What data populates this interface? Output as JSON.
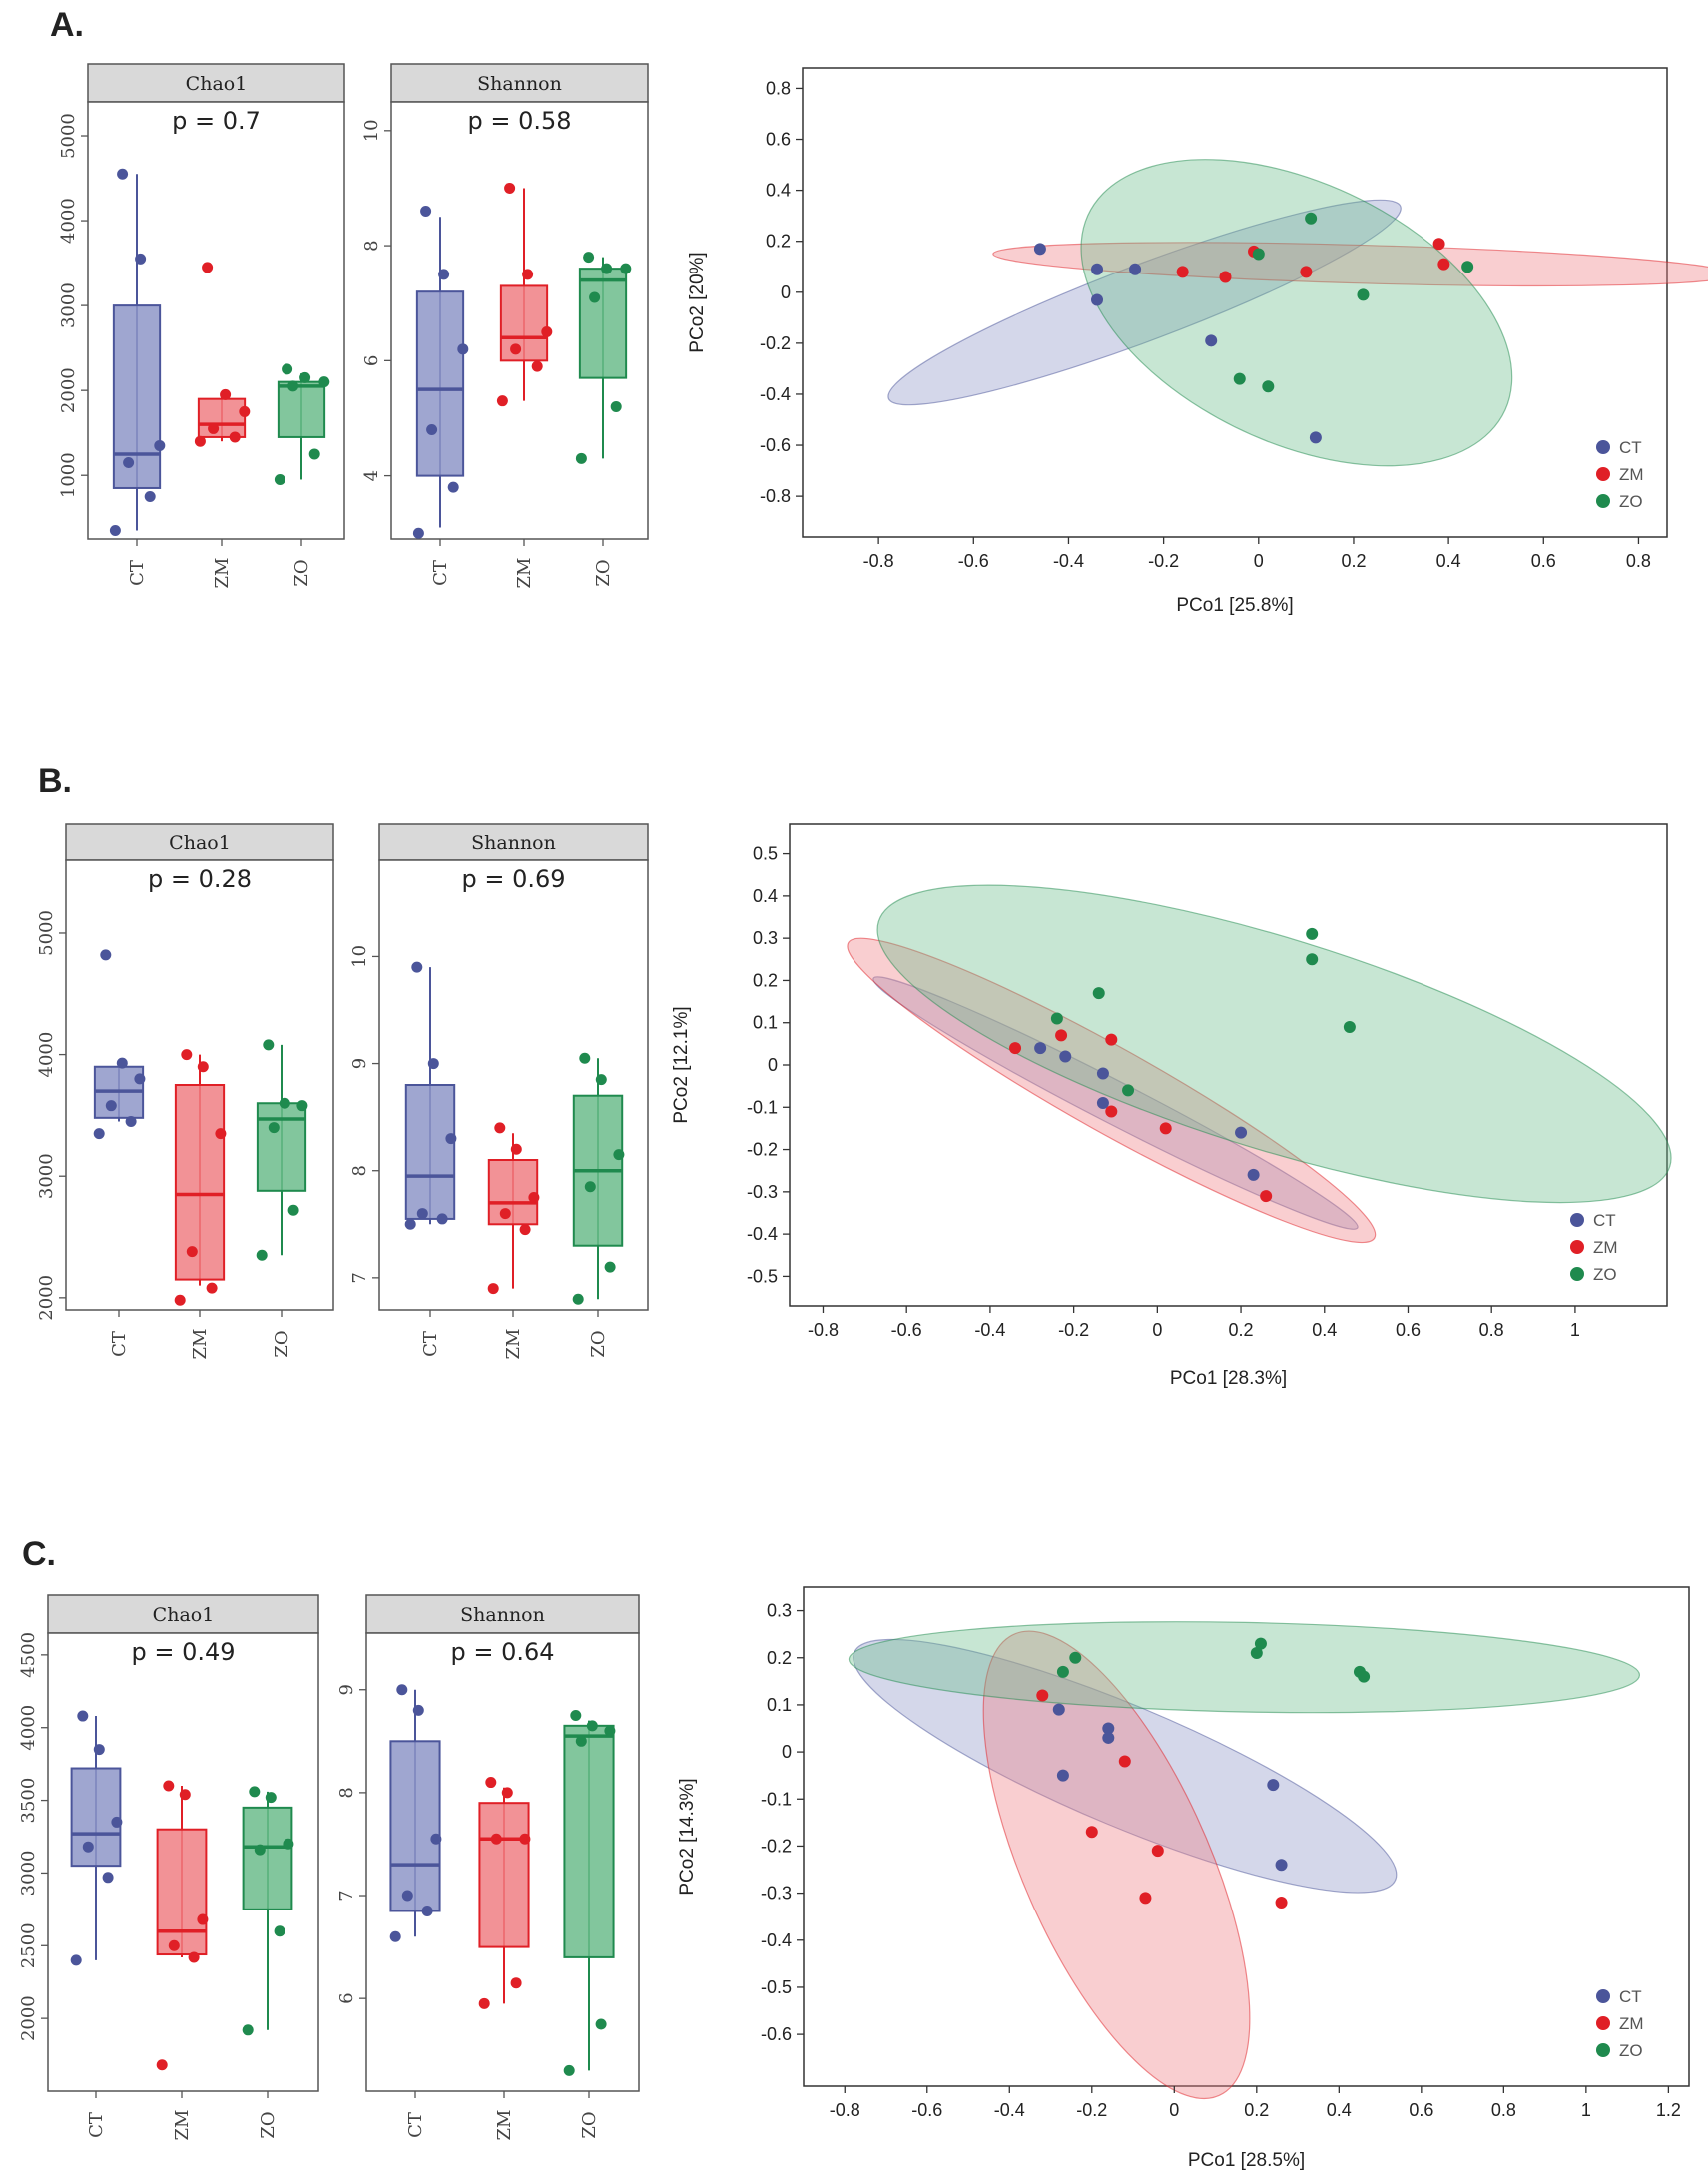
{
  "colors": {
    "CT": "#4b559a",
    "ZM": "#e01f26",
    "ZO": "#1f8a4e",
    "CT_fill": "#8e96c8",
    "ZM_fill": "#f07f84",
    "ZO_fill": "#6cbc8c"
  },
  "groups": [
    "CT",
    "ZM",
    "ZO"
  ],
  "chart_data": [
    {
      "panel": "A.",
      "type": "box",
      "title": "Chao1",
      "pvalue": "p = 0.7",
      "ylim": [
        250,
        5400
      ],
      "yticks": [
        1000,
        2000,
        3000,
        4000,
        5000
      ],
      "categories": [
        "CT",
        "ZM",
        "ZO"
      ],
      "boxes": [
        {
          "group": "CT",
          "whisker_low": 350,
          "q1": 850,
          "median": 1250,
          "q3": 3000,
          "whisker_high": 4550,
          "points": [
            350,
            750,
            1150,
            1350,
            3550,
            4550
          ]
        },
        {
          "group": "ZM",
          "whisker_low": 1400,
          "q1": 1450,
          "median": 1600,
          "q3": 1900,
          "whisker_high": 1950,
          "points": [
            1400,
            1450,
            1550,
            1750,
            1950,
            3450
          ]
        },
        {
          "group": "ZO",
          "whisker_low": 950,
          "q1": 1450,
          "median": 2050,
          "q3": 2100,
          "whisker_high": 2200,
          "points": [
            950,
            1250,
            2050,
            2100,
            2150,
            2250
          ]
        }
      ]
    },
    {
      "panel": "A.",
      "type": "box",
      "title": "Shannon",
      "pvalue": "p = 0.58",
      "ylim": [
        2.9,
        10.5
      ],
      "yticks": [
        4,
        6,
        8,
        10
      ],
      "categories": [
        "CT",
        "ZM",
        "ZO"
      ],
      "boxes": [
        {
          "group": "CT",
          "whisker_low": 3.1,
          "q1": 4.0,
          "median": 5.5,
          "q3": 7.2,
          "whisker_high": 8.5,
          "points": [
            3.0,
            3.8,
            4.8,
            6.2,
            7.5,
            8.6
          ]
        },
        {
          "group": "ZM",
          "whisker_low": 5.3,
          "q1": 6.0,
          "median": 6.4,
          "q3": 7.3,
          "whisker_high": 9.0,
          "points": [
            5.3,
            5.9,
            6.2,
            6.5,
            7.5,
            9.0
          ]
        },
        {
          "group": "ZO",
          "whisker_low": 4.3,
          "q1": 5.7,
          "median": 7.4,
          "q3": 7.6,
          "whisker_high": 7.8,
          "points": [
            4.3,
            5.2,
            7.1,
            7.6,
            7.6,
            7.8
          ]
        }
      ]
    },
    {
      "panel": "A.",
      "type": "scatter",
      "xlabel": "PCo1 [25.8%]",
      "ylabel": "PCo2 [20%]",
      "xlim": [
        -0.96,
        0.86
      ],
      "ylim": [
        -0.96,
        0.88
      ],
      "xticks": [
        -0.8,
        -0.6,
        -0.4,
        -0.2,
        0.0,
        0.2,
        0.4,
        0.6,
        0.8
      ],
      "yticks": [
        -0.8,
        -0.6,
        -0.4,
        -0.2,
        0.0,
        0.2,
        0.4,
        0.6,
        0.8
      ],
      "series": [
        {
          "name": "CT",
          "x": [
            -0.46,
            -0.34,
            -0.26,
            -0.34,
            -0.1,
            0.12
          ],
          "y": [
            0.17,
            0.09,
            0.09,
            -0.03,
            -0.19,
            -0.57
          ],
          "ellipse": {
            "cx": -0.24,
            "cy": -0.04,
            "rx": 0.66,
            "ry": 0.13,
            "angle": 36
          }
        },
        {
          "name": "ZM",
          "x": [
            -0.16,
            -0.07,
            -0.01,
            0.1,
            0.38,
            0.39
          ],
          "y": [
            0.08,
            0.06,
            0.16,
            0.08,
            0.19,
            0.11
          ],
          "ellipse": {
            "cx": 0.22,
            "cy": 0.11,
            "rx": 0.78,
            "ry": 0.075,
            "angle": -3
          }
        },
        {
          "name": "ZO",
          "x": [
            0.0,
            0.11,
            0.22,
            0.44,
            -0.04,
            0.02
          ],
          "y": [
            0.15,
            0.29,
            -0.01,
            0.1,
            -0.34,
            -0.37
          ],
          "ellipse": {
            "cx": 0.08,
            "cy": -0.08,
            "rx": 0.65,
            "ry": 0.38,
            "angle": -62
          }
        }
      ]
    },
    {
      "panel": "B.",
      "type": "box",
      "title": "Chao1",
      "pvalue": "p = 0.28",
      "ylim": [
        1900,
        5600
      ],
      "yticks": [
        2000,
        3000,
        4000,
        5000
      ],
      "categories": [
        "CT",
        "ZM",
        "ZO"
      ],
      "boxes": [
        {
          "group": "CT",
          "whisker_low": 3450,
          "q1": 3480,
          "median": 3700,
          "q3": 3900,
          "whisker_high": 3950,
          "points": [
            3350,
            3450,
            3580,
            3800,
            3930,
            4820
          ]
        },
        {
          "group": "ZM",
          "whisker_low": 2100,
          "q1": 2150,
          "median": 2850,
          "q3": 3750,
          "whisker_high": 4000,
          "points": [
            1980,
            2080,
            2380,
            3350,
            3900,
            4000
          ]
        },
        {
          "group": "ZO",
          "whisker_low": 2350,
          "q1": 2880,
          "median": 3470,
          "q3": 3600,
          "whisker_high": 4080,
          "points": [
            2350,
            2720,
            3400,
            3580,
            3600,
            4080
          ]
        }
      ]
    },
    {
      "panel": "B.",
      "type": "box",
      "title": "Shannon",
      "pvalue": "p = 0.69",
      "ylim": [
        6.7,
        10.9
      ],
      "yticks": [
        7,
        8,
        9,
        10
      ],
      "categories": [
        "CT",
        "ZM",
        "ZO"
      ],
      "boxes": [
        {
          "group": "CT",
          "whisker_low": 7.5,
          "q1": 7.55,
          "median": 7.95,
          "q3": 8.8,
          "whisker_high": 9.9,
          "points": [
            7.5,
            7.55,
            7.6,
            8.3,
            9.0,
            9.9
          ]
        },
        {
          "group": "ZM",
          "whisker_low": 6.9,
          "q1": 7.5,
          "median": 7.7,
          "q3": 8.1,
          "whisker_high": 8.35,
          "points": [
            6.9,
            7.45,
            7.6,
            7.75,
            8.2,
            8.4
          ]
        },
        {
          "group": "ZO",
          "whisker_low": 6.8,
          "q1": 7.3,
          "median": 8.0,
          "q3": 8.7,
          "whisker_high": 9.05,
          "points": [
            6.8,
            7.1,
            7.85,
            8.15,
            8.85,
            9.05
          ]
        }
      ]
    },
    {
      "panel": "B.",
      "type": "scatter",
      "xlabel": "PCo1 [28.3%]",
      "ylabel": "PCo2 [12.1%]",
      "xlim": [
        -0.88,
        1.22
      ],
      "ylim": [
        -0.57,
        0.57
      ],
      "xticks": [
        -0.8,
        -0.6,
        -0.4,
        -0.2,
        0.0,
        0.2,
        0.4,
        0.6,
        0.8,
        1.0
      ],
      "yticks": [
        -0.5,
        -0.4,
        -0.3,
        -0.2,
        -0.1,
        0.0,
        0.1,
        0.2,
        0.3,
        0.4,
        0.5
      ],
      "series": [
        {
          "name": "CT",
          "x": [
            -0.28,
            -0.22,
            -0.13,
            -0.13,
            0.2,
            0.23
          ],
          "y": [
            0.04,
            0.02,
            -0.02,
            -0.09,
            -0.16,
            -0.26
          ],
          "ellipse": {
            "cx": -0.1,
            "cy": -0.09,
            "rx": 0.65,
            "ry": 0.05,
            "angle": -27
          }
        },
        {
          "name": "ZM",
          "x": [
            -0.34,
            -0.23,
            -0.11,
            -0.11,
            0.02,
            0.26
          ],
          "y": [
            0.04,
            0.07,
            0.06,
            -0.11,
            -0.15,
            -0.31
          ],
          "ellipse": {
            "cx": -0.11,
            "cy": -0.06,
            "rx": 0.72,
            "ry": 0.1,
            "angle": -29
          }
        },
        {
          "name": "ZO",
          "x": [
            -0.24,
            -0.14,
            -0.07,
            0.37,
            0.37,
            0.46
          ],
          "y": [
            0.11,
            0.17,
            -0.06,
            0.31,
            0.25,
            0.09
          ],
          "ellipse": {
            "cx": 0.28,
            "cy": 0.05,
            "rx": 0.99,
            "ry": 0.25,
            "angle": -17
          }
        }
      ]
    },
    {
      "panel": "C.",
      "type": "box",
      "title": "Chao1",
      "pvalue": "p = 0.49",
      "ylim": [
        1500,
        4650
      ],
      "yticks": [
        2000,
        2500,
        3000,
        3500,
        4000,
        4500
      ],
      "categories": [
        "CT",
        "ZM",
        "ZO"
      ],
      "boxes": [
        {
          "group": "CT",
          "whisker_low": 2400,
          "q1": 3050,
          "median": 3270,
          "q3": 3720,
          "whisker_high": 4080,
          "points": [
            2400,
            2970,
            3180,
            3350,
            3850,
            4080
          ]
        },
        {
          "group": "ZM",
          "whisker_low": 2420,
          "q1": 2440,
          "median": 2600,
          "q3": 3300,
          "whisker_high": 3600,
          "points": [
            1680,
            2420,
            2500,
            2680,
            3540,
            3600
          ]
        },
        {
          "group": "ZO",
          "whisker_low": 1920,
          "q1": 2750,
          "median": 3180,
          "q3": 3450,
          "whisker_high": 3560,
          "points": [
            1920,
            2600,
            3160,
            3200,
            3520,
            3560
          ]
        }
      ]
    },
    {
      "panel": "C.",
      "type": "box",
      "title": "Shannon",
      "pvalue": "p = 0.64",
      "ylim": [
        5.1,
        9.55
      ],
      "yticks": [
        6,
        7,
        8,
        9
      ],
      "categories": [
        "CT",
        "ZM",
        "ZO"
      ],
      "boxes": [
        {
          "group": "CT",
          "whisker_low": 6.6,
          "q1": 6.85,
          "median": 7.3,
          "q3": 8.5,
          "whisker_high": 9.0,
          "points": [
            6.6,
            6.85,
            7.0,
            7.55,
            8.8,
            9.0
          ]
        },
        {
          "group": "ZM",
          "whisker_low": 5.95,
          "q1": 6.5,
          "median": 7.55,
          "q3": 7.9,
          "whisker_high": 8.05,
          "points": [
            5.95,
            6.15,
            7.55,
            7.55,
            8.0,
            8.1
          ]
        },
        {
          "group": "ZO",
          "whisker_low": 5.3,
          "q1": 6.4,
          "median": 8.55,
          "q3": 8.65,
          "whisker_high": 8.7,
          "points": [
            5.3,
            5.75,
            8.5,
            8.6,
            8.65,
            8.75
          ]
        }
      ]
    },
    {
      "panel": "C.",
      "type": "scatter",
      "xlabel": "PCo1 [28.5%]",
      "ylabel": "PCo2 [14.3%]",
      "xlim": [
        -0.9,
        1.25
      ],
      "ylim": [
        -0.71,
        0.35
      ],
      "xticks": [
        -0.8,
        -0.6,
        -0.4,
        -0.2,
        0.0,
        0.2,
        0.4,
        0.6,
        0.8,
        1.0,
        1.2
      ],
      "yticks": [
        -0.6,
        -0.5,
        -0.4,
        -0.3,
        -0.2,
        -0.1,
        0.0,
        0.1,
        0.2,
        0.3
      ],
      "series": [
        {
          "name": "CT",
          "x": [
            -0.28,
            -0.27,
            -0.16,
            -0.16,
            0.24,
            0.26
          ],
          "y": [
            0.09,
            -0.05,
            0.05,
            0.03,
            -0.07,
            -0.24
          ],
          "ellipse": {
            "cx": -0.12,
            "cy": -0.03,
            "rx": 0.7,
            "ry": 0.13,
            "angle": -20
          }
        },
        {
          "name": "ZM",
          "x": [
            -0.32,
            -0.2,
            -0.12,
            -0.04,
            -0.07,
            0.26
          ],
          "y": [
            0.12,
            -0.17,
            -0.02,
            -0.21,
            -0.31,
            -0.32
          ],
          "ellipse": {
            "cx": -0.14,
            "cy": -0.24,
            "rx": 0.55,
            "ry": 0.22,
            "angle": -62
          }
        },
        {
          "name": "ZO",
          "x": [
            -0.27,
            -0.24,
            0.2,
            0.21,
            0.45,
            0.46
          ],
          "y": [
            0.17,
            0.2,
            0.21,
            0.23,
            0.17,
            0.16
          ],
          "ellipse": {
            "cx": 0.17,
            "cy": 0.18,
            "rx": 0.96,
            "ry": 0.095,
            "angle": -1
          }
        }
      ]
    }
  ]
}
